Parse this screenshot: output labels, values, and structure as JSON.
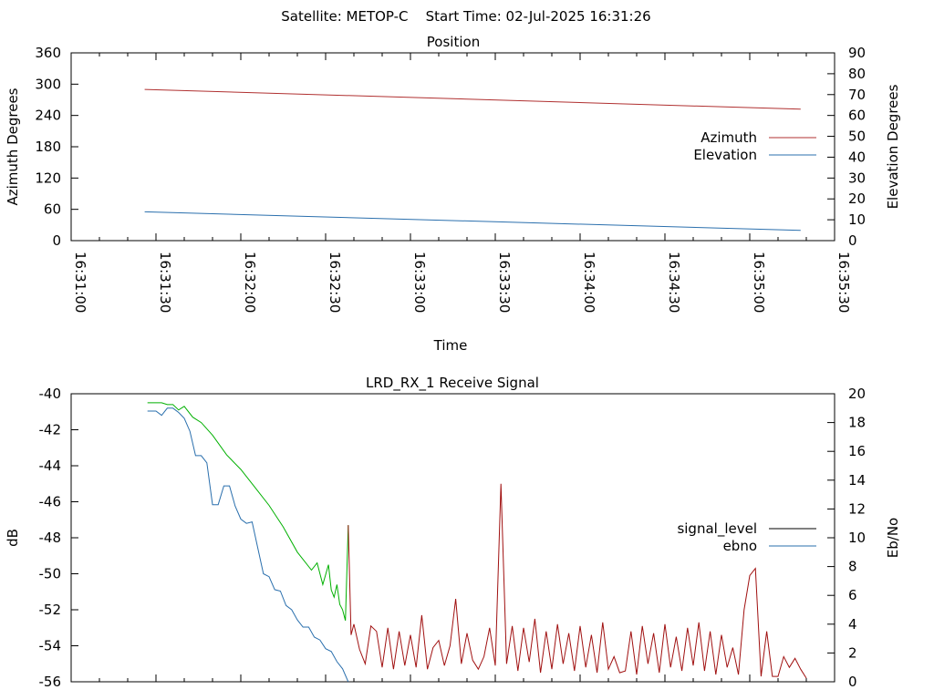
{
  "page": {
    "header_title": "Satellite: METOP-C    Start Time: 02-Jul-2025 16:31:26"
  },
  "colors": {
    "azimuth": "#b03030",
    "elevation": "#2a6fad",
    "signal_level_legend": "#000000",
    "ebno_legend": "#2a6fad",
    "signal_green": "#00b000",
    "signal_red": "#a01010",
    "ebno_line": "#2a6fad"
  },
  "chart_data": [
    {
      "type": "line",
      "title": "Position",
      "xlabel": "Time",
      "ylabel": "Azimuth Degrees",
      "y2label": "Elevation Degrees",
      "x_ticks": [
        "16:31:00",
        "16:31:30",
        "16:32:00",
        "16:32:30",
        "16:33:00",
        "16:33:30",
        "16:34:00",
        "16:34:30",
        "16:35:00",
        "16:35:30"
      ],
      "xlim": [
        "16:31:00",
        "16:35:30"
      ],
      "ylim": [
        0,
        360
      ],
      "y_ticks": [
        0,
        60,
        120,
        180,
        240,
        300,
        360
      ],
      "y2lim": [
        0,
        90
      ],
      "y2_ticks": [
        0,
        10,
        20,
        30,
        40,
        50,
        60,
        70,
        80,
        90
      ],
      "legend_position": "right",
      "series": [
        {
          "name": "Azimuth",
          "axis": "y",
          "color_key": "azimuth",
          "x": [
            "16:31:26",
            "16:35:18"
          ],
          "values": [
            290,
            252
          ]
        },
        {
          "name": "Elevation",
          "axis": "y2",
          "color_key": "elevation",
          "x": [
            "16:31:26",
            "16:35:18"
          ],
          "values": [
            13.8,
            4.9
          ]
        }
      ]
    },
    {
      "type": "line",
      "title": "LRD_RX_1 Receive Signal",
      "xlabel": "",
      "ylabel": "dB",
      "y2label": "Eb/No",
      "xlim": [
        "16:31:00",
        "16:35:30"
      ],
      "ylim": [
        -56,
        -40
      ],
      "y_ticks": [
        -56,
        -54,
        -52,
        -50,
        -48,
        -46,
        -44,
        -42,
        -40
      ],
      "y2lim": [
        0,
        20
      ],
      "y2_ticks": [
        0,
        2,
        4,
        6,
        8,
        10,
        12,
        14,
        16,
        18,
        20
      ],
      "legend_position": "right",
      "series": [
        {
          "name": "signal_level",
          "axis": "y",
          "legend_color_key": "signal_level_legend",
          "segments": [
            {
              "color_key": "signal_green",
              "x": [
                "16:31:27",
                "16:31:32",
                "16:31:34",
                "16:31:36",
                "16:31:38",
                "16:31:40",
                "16:31:43",
                "16:31:46",
                "16:31:50",
                "16:31:55",
                "16:32:00",
                "16:32:05",
                "16:32:10",
                "16:32:15",
                "16:32:20",
                "16:32:25",
                "16:32:27",
                "16:32:29",
                "16:32:31",
                "16:32:32",
                "16:32:33",
                "16:32:34",
                "16:32:35",
                "16:32:36",
                "16:32:37",
                "16:32:38"
              ],
              "values": [
                -40.5,
                -40.5,
                -40.6,
                -40.6,
                -40.9,
                -40.7,
                -41.3,
                -41.6,
                -42.3,
                -43.4,
                -44.2,
                -45.2,
                -46.2,
                -47.4,
                -48.8,
                -49.8,
                -49.4,
                -50.6,
                -49.5,
                -50.9,
                -51.3,
                -50.6,
                -51.7,
                -52.0,
                -52.6,
                -47.3
              ]
            },
            {
              "color_key": "signal_red",
              "x": [
                "16:32:38",
                "16:32:39",
                "16:32:40",
                "16:32:42",
                "16:32:44",
                "16:32:46",
                "16:32:48",
                "16:32:50",
                "16:32:52",
                "16:32:54",
                "16:32:56",
                "16:32:58",
                "16:33:00",
                "16:33:02",
                "16:33:04",
                "16:33:06",
                "16:33:08",
                "16:33:10",
                "16:33:12",
                "16:33:14",
                "16:33:16",
                "16:33:18",
                "16:33:20",
                "16:33:22",
                "16:33:24",
                "16:33:26",
                "16:33:28",
                "16:33:30",
                "16:33:32",
                "16:33:34",
                "16:33:36",
                "16:33:38",
                "16:33:40",
                "16:33:42",
                "16:33:44",
                "16:33:46",
                "16:33:48",
                "16:33:50",
                "16:33:52",
                "16:33:54",
                "16:33:56",
                "16:33:58",
                "16:34:00",
                "16:34:02",
                "16:34:04",
                "16:34:06",
                "16:34:08",
                "16:34:10",
                "16:34:12",
                "16:34:14",
                "16:34:16",
                "16:34:18",
                "16:34:20",
                "16:34:22",
                "16:34:24",
                "16:34:26",
                "16:34:28",
                "16:34:30",
                "16:34:32",
                "16:34:34",
                "16:34:36",
                "16:34:38",
                "16:34:40",
                "16:34:42",
                "16:34:44",
                "16:34:46",
                "16:34:48",
                "16:34:50",
                "16:34:52",
                "16:34:54",
                "16:34:56",
                "16:34:58",
                "16:35:00",
                "16:35:02",
                "16:35:04",
                "16:35:06",
                "16:35:08",
                "16:35:10",
                "16:35:12",
                "16:35:14",
                "16:35:16",
                "16:35:18",
                "16:35:20"
              ],
              "values": [
                -47.3,
                -53.4,
                -52.8,
                -54.2,
                -55.0,
                -52.9,
                -53.2,
                -55.2,
                -53.0,
                -55.3,
                -53.2,
                -55.1,
                -53.4,
                -55.2,
                -52.3,
                -55.3,
                -54.1,
                -53.7,
                -55.1,
                -54.0,
                -51.4,
                -55.0,
                -53.3,
                -54.8,
                -55.3,
                -54.6,
                -53.0,
                -55.1,
                -45.0,
                -55.0,
                -52.9,
                -55.4,
                -53.0,
                -54.9,
                -52.5,
                -55.5,
                -53.2,
                -55.3,
                -52.8,
                -55.0,
                -53.3,
                -55.4,
                -52.9,
                -55.2,
                -53.4,
                -55.5,
                -52.7,
                -55.3,
                -54.6,
                -55.5,
                -55.4,
                -53.2,
                -55.6,
                -52.9,
                -55.0,
                -53.3,
                -55.5,
                -52.8,
                -55.2,
                -53.5,
                -55.4,
                -53.0,
                -55.1,
                -52.7,
                -55.4,
                -53.2,
                -55.6,
                -53.4,
                -55.2,
                -54.1,
                -55.6,
                -52.0,
                -50.1,
                -49.7,
                -55.7,
                -53.2,
                -55.7,
                -55.7,
                -54.6,
                -55.2,
                -54.7,
                -55.3,
                -55.8
              ]
            }
          ]
        },
        {
          "name": "ebno",
          "axis": "y2",
          "color_key": "ebno_line",
          "x": [
            "16:31:27",
            "16:31:30",
            "16:31:32",
            "16:31:34",
            "16:31:36",
            "16:31:38",
            "16:31:40",
            "16:31:42",
            "16:31:44",
            "16:31:46",
            "16:31:48",
            "16:31:50",
            "16:31:52",
            "16:31:54",
            "16:31:56",
            "16:31:58",
            "16:32:00",
            "16:32:02",
            "16:32:04",
            "16:32:06",
            "16:32:08",
            "16:32:10",
            "16:32:12",
            "16:32:14",
            "16:32:16",
            "16:32:18",
            "16:32:20",
            "16:32:22",
            "16:32:24",
            "16:32:26",
            "16:32:28",
            "16:32:30",
            "16:32:32",
            "16:32:34",
            "16:32:36",
            "16:32:38"
          ],
          "values": [
            18.8,
            18.8,
            18.5,
            19.0,
            19.0,
            18.7,
            18.3,
            17.4,
            15.7,
            15.7,
            15.2,
            12.3,
            12.3,
            13.6,
            13.6,
            12.2,
            11.3,
            11.0,
            11.1,
            9.3,
            7.5,
            7.3,
            6.4,
            6.3,
            5.3,
            5.0,
            4.3,
            3.8,
            3.8,
            3.1,
            2.9,
            2.3,
            2.1,
            1.4,
            0.9,
            0.0
          ]
        }
      ]
    }
  ]
}
